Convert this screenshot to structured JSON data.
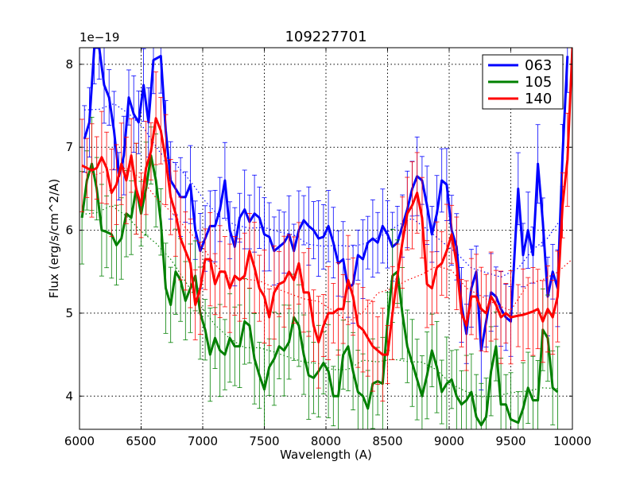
{
  "chart_data": {
    "type": "line",
    "title": "109227701",
    "xlabel": "Wavelength (A)",
    "ylabel": "Flux (erg/s/cm^2/A)",
    "y_scale_label": "1e−19",
    "xlim": [
      6000,
      10000
    ],
    "ylim": [
      3.6,
      8.2
    ],
    "x_ticks": [
      6000,
      6500,
      7000,
      7500,
      8000,
      8500,
      9000,
      9500,
      10000
    ],
    "y_ticks": [
      4,
      5,
      6,
      7,
      8
    ],
    "grid": true,
    "legend_position": "top-right",
    "series": [
      {
        "name": "063",
        "color": "#0000ff",
        "error": 0.38,
        "points": [
          [
            6040,
            7.1
          ],
          [
            6080,
            7.3
          ],
          [
            6120,
            8.2
          ],
          [
            6160,
            8.2
          ],
          [
            6200,
            7.75
          ],
          [
            6240,
            7.6
          ],
          [
            6280,
            7.2
          ],
          [
            6320,
            6.65
          ],
          [
            6360,
            6.9
          ],
          [
            6400,
            7.6
          ],
          [
            6440,
            7.4
          ],
          [
            6480,
            7.3
          ],
          [
            6520,
            7.75
          ],
          [
            6560,
            7.3
          ],
          [
            6600,
            8.05
          ],
          [
            6660,
            8.1
          ],
          [
            6700,
            7.2
          ],
          [
            6740,
            6.6
          ],
          [
            6780,
            6.5
          ],
          [
            6820,
            6.4
          ],
          [
            6860,
            6.4
          ],
          [
            6900,
            6.55
          ],
          [
            6940,
            6.0
          ],
          [
            6980,
            5.75
          ],
          [
            7020,
            5.9
          ],
          [
            7060,
            6.05
          ],
          [
            7100,
            6.05
          ],
          [
            7140,
            6.25
          ],
          [
            7180,
            6.6
          ],
          [
            7220,
            6.0
          ],
          [
            7260,
            5.8
          ],
          [
            7300,
            6.15
          ],
          [
            7340,
            6.25
          ],
          [
            7380,
            6.1
          ],
          [
            7420,
            6.2
          ],
          [
            7460,
            6.15
          ],
          [
            7500,
            5.95
          ],
          [
            7540,
            5.92
          ],
          [
            7580,
            5.75
          ],
          [
            7620,
            5.8
          ],
          [
            7660,
            5.85
          ],
          [
            7700,
            5.95
          ],
          [
            7740,
            5.75
          ],
          [
            7780,
            6.0
          ],
          [
            7820,
            6.12
          ],
          [
            7860,
            6.05
          ],
          [
            7900,
            6.0
          ],
          [
            7940,
            5.9
          ],
          [
            7980,
            5.92
          ],
          [
            8020,
            6.05
          ],
          [
            8060,
            5.85
          ],
          [
            8100,
            5.6
          ],
          [
            8140,
            5.65
          ],
          [
            8180,
            5.3
          ],
          [
            8220,
            5.35
          ],
          [
            8260,
            5.7
          ],
          [
            8300,
            5.65
          ],
          [
            8340,
            5.85
          ],
          [
            8380,
            5.9
          ],
          [
            8420,
            5.85
          ],
          [
            8460,
            6.05
          ],
          [
            8500,
            5.95
          ],
          [
            8540,
            5.8
          ],
          [
            8580,
            5.85
          ],
          [
            8620,
            6.05
          ],
          [
            8660,
            6.25
          ],
          [
            8700,
            6.5
          ],
          [
            8740,
            6.65
          ],
          [
            8780,
            6.6
          ],
          [
            8820,
            6.3
          ],
          [
            8860,
            5.95
          ],
          [
            8900,
            6.2
          ],
          [
            8940,
            6.6
          ],
          [
            8980,
            6.55
          ],
          [
            9020,
            6.0
          ],
          [
            9060,
            5.8
          ],
          [
            9100,
            5.1
          ],
          [
            9140,
            4.75
          ],
          [
            9180,
            5.3
          ],
          [
            9220,
            5.5
          ],
          [
            9260,
            4.55
          ],
          [
            9300,
            4.9
          ],
          [
            9340,
            5.25
          ],
          [
            9380,
            5.2
          ],
          [
            9420,
            5.05
          ],
          [
            9460,
            4.95
          ],
          [
            9500,
            4.9
          ],
          [
            9560,
            6.5
          ],
          [
            9600,
            5.7
          ],
          [
            9640,
            6.0
          ],
          [
            9680,
            5.7
          ],
          [
            9720,
            6.8
          ],
          [
            9760,
            6.1
          ],
          [
            9800,
            5.2
          ],
          [
            9840,
            5.5
          ],
          [
            9880,
            5.3
          ],
          [
            9920,
            6.9
          ],
          [
            9960,
            8.1
          ]
        ]
      },
      {
        "name": "105",
        "color": "#008000",
        "error": 0.45,
        "points": [
          [
            6020,
            6.15
          ],
          [
            6060,
            6.6
          ],
          [
            6100,
            6.8
          ],
          [
            6140,
            6.5
          ],
          [
            6180,
            6.0
          ],
          [
            6220,
            5.98
          ],
          [
            6260,
            5.95
          ],
          [
            6300,
            5.82
          ],
          [
            6340,
            5.9
          ],
          [
            6380,
            6.2
          ],
          [
            6420,
            6.15
          ],
          [
            6460,
            6.5
          ],
          [
            6500,
            6.2
          ],
          [
            6540,
            6.5
          ],
          [
            6580,
            6.9
          ],
          [
            6620,
            6.6
          ],
          [
            6660,
            6.1
          ],
          [
            6700,
            5.3
          ],
          [
            6740,
            5.1
          ],
          [
            6780,
            5.5
          ],
          [
            6820,
            5.4
          ],
          [
            6860,
            5.15
          ],
          [
            6900,
            5.3
          ],
          [
            6940,
            5.45
          ],
          [
            6980,
            5.0
          ],
          [
            7020,
            4.8
          ],
          [
            7060,
            4.5
          ],
          [
            7100,
            4.7
          ],
          [
            7140,
            4.55
          ],
          [
            7180,
            4.5
          ],
          [
            7220,
            4.7
          ],
          [
            7260,
            4.6
          ],
          [
            7300,
            4.6
          ],
          [
            7340,
            4.9
          ],
          [
            7380,
            4.85
          ],
          [
            7420,
            4.45
          ],
          [
            7460,
            4.25
          ],
          [
            7500,
            4.08
          ],
          [
            7540,
            4.35
          ],
          [
            7580,
            4.45
          ],
          [
            7620,
            4.6
          ],
          [
            7660,
            4.55
          ],
          [
            7700,
            4.65
          ],
          [
            7740,
            4.95
          ],
          [
            7780,
            4.85
          ],
          [
            7820,
            4.5
          ],
          [
            7860,
            4.25
          ],
          [
            7900,
            4.22
          ],
          [
            7940,
            4.3
          ],
          [
            7980,
            4.4
          ],
          [
            8020,
            4.3
          ],
          [
            8060,
            4.0
          ],
          [
            8100,
            4.0
          ],
          [
            8140,
            4.5
          ],
          [
            8180,
            4.6
          ],
          [
            8220,
            4.3
          ],
          [
            8260,
            4.05
          ],
          [
            8300,
            4.0
          ],
          [
            8340,
            3.85
          ],
          [
            8380,
            4.15
          ],
          [
            8420,
            4.18
          ],
          [
            8460,
            4.15
          ],
          [
            8500,
            4.9
          ],
          [
            8540,
            5.45
          ],
          [
            8580,
            5.5
          ],
          [
            8620,
            5.0
          ],
          [
            8660,
            4.6
          ],
          [
            8700,
            4.4
          ],
          [
            8740,
            4.2
          ],
          [
            8780,
            4.0
          ],
          [
            8820,
            4.25
          ],
          [
            8860,
            4.55
          ],
          [
            8900,
            4.35
          ],
          [
            8940,
            4.05
          ],
          [
            8980,
            4.15
          ],
          [
            9020,
            4.2
          ],
          [
            9060,
            4.0
          ],
          [
            9100,
            3.9
          ],
          [
            9140,
            3.95
          ],
          [
            9180,
            4.05
          ],
          [
            9220,
            3.75
          ],
          [
            9260,
            3.65
          ],
          [
            9300,
            3.75
          ],
          [
            9340,
            4.3
          ],
          [
            9380,
            4.6
          ],
          [
            9420,
            3.9
          ],
          [
            9460,
            3.9
          ],
          [
            9500,
            3.72
          ],
          [
            9560,
            3.68
          ],
          [
            9600,
            3.85
          ],
          [
            9640,
            4.1
          ],
          [
            9680,
            3.95
          ],
          [
            9720,
            3.95
          ],
          [
            9760,
            4.8
          ],
          [
            9800,
            4.7
          ],
          [
            9840,
            4.1
          ],
          [
            9880,
            4.05
          ]
        ]
      },
      {
        "name": "140",
        "color": "#ff0000",
        "error": 0.45,
        "points": [
          [
            6020,
            6.78
          ],
          [
            6060,
            6.75
          ],
          [
            6100,
            6.72
          ],
          [
            6140,
            6.75
          ],
          [
            6180,
            6.88
          ],
          [
            6220,
            6.75
          ],
          [
            6260,
            6.45
          ],
          [
            6300,
            6.55
          ],
          [
            6340,
            6.8
          ],
          [
            6380,
            6.6
          ],
          [
            6420,
            6.9
          ],
          [
            6460,
            6.5
          ],
          [
            6500,
            6.3
          ],
          [
            6540,
            6.75
          ],
          [
            6580,
            6.95
          ],
          [
            6620,
            7.35
          ],
          [
            6660,
            7.2
          ],
          [
            6700,
            6.85
          ],
          [
            6740,
            6.4
          ],
          [
            6780,
            6.2
          ],
          [
            6820,
            5.9
          ],
          [
            6860,
            5.75
          ],
          [
            6900,
            5.6
          ],
          [
            6940,
            5.1
          ],
          [
            6980,
            5.3
          ],
          [
            7020,
            5.65
          ],
          [
            7060,
            5.65
          ],
          [
            7100,
            5.35
          ],
          [
            7140,
            5.5
          ],
          [
            7180,
            5.5
          ],
          [
            7220,
            5.3
          ],
          [
            7260,
            5.45
          ],
          [
            7300,
            5.4
          ],
          [
            7340,
            5.45
          ],
          [
            7380,
            5.75
          ],
          [
            7420,
            5.55
          ],
          [
            7460,
            5.3
          ],
          [
            7500,
            5.2
          ],
          [
            7540,
            4.95
          ],
          [
            7580,
            5.25
          ],
          [
            7620,
            5.35
          ],
          [
            7660,
            5.38
          ],
          [
            7700,
            5.5
          ],
          [
            7740,
            5.4
          ],
          [
            7780,
            5.6
          ],
          [
            7820,
            5.25
          ],
          [
            7860,
            5.25
          ],
          [
            7900,
            4.85
          ],
          [
            7940,
            4.65
          ],
          [
            7980,
            4.85
          ],
          [
            8020,
            5.0
          ],
          [
            8060,
            5.0
          ],
          [
            8100,
            5.05
          ],
          [
            8140,
            5.05
          ],
          [
            8180,
            5.4
          ],
          [
            8220,
            5.2
          ],
          [
            8260,
            4.85
          ],
          [
            8300,
            4.8
          ],
          [
            8340,
            4.7
          ],
          [
            8380,
            4.6
          ],
          [
            8420,
            4.55
          ],
          [
            8460,
            4.5
          ],
          [
            8500,
            4.5
          ],
          [
            8540,
            5.0
          ],
          [
            8580,
            5.45
          ],
          [
            8620,
            5.85
          ],
          [
            8660,
            6.2
          ],
          [
            8700,
            6.3
          ],
          [
            8740,
            6.45
          ],
          [
            8780,
            6.15
          ],
          [
            8820,
            5.35
          ],
          [
            8860,
            5.3
          ],
          [
            8900,
            5.55
          ],
          [
            8940,
            5.6
          ],
          [
            8980,
            5.75
          ],
          [
            9020,
            5.95
          ],
          [
            9060,
            5.6
          ],
          [
            9100,
            5.0
          ],
          [
            9140,
            4.85
          ],
          [
            9180,
            5.2
          ],
          [
            9220,
            5.2
          ],
          [
            9260,
            5.05
          ],
          [
            9300,
            5.0
          ],
          [
            9340,
            5.2
          ],
          [
            9380,
            5.1
          ],
          [
            9420,
            4.95
          ],
          [
            9460,
            5.0
          ],
          [
            9500,
            4.95
          ],
          [
            9560,
            4.97
          ],
          [
            9600,
            4.98
          ],
          [
            9640,
            5.0
          ],
          [
            9680,
            5.02
          ],
          [
            9720,
            5.05
          ],
          [
            9760,
            4.9
          ],
          [
            9800,
            5.05
          ],
          [
            9840,
            4.95
          ],
          [
            9880,
            5.2
          ],
          [
            9920,
            6.3
          ],
          [
            9960,
            6.85
          ],
          [
            10000,
            8.2
          ]
        ]
      }
    ]
  }
}
